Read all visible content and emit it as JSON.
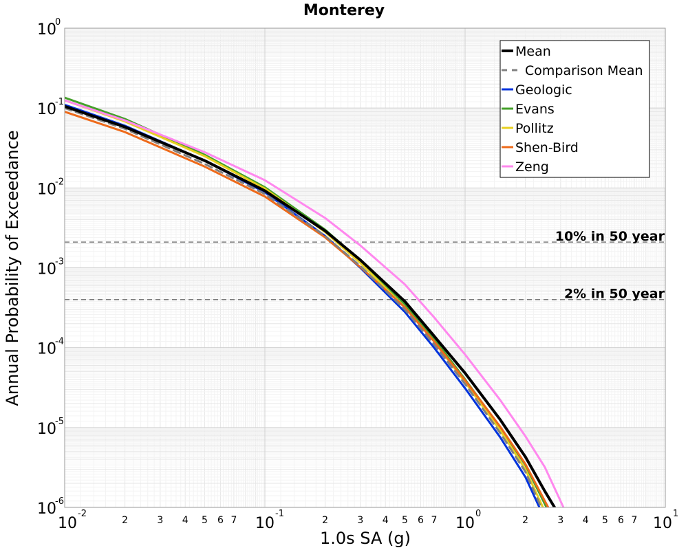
{
  "chart_data": {
    "type": "line",
    "title": "Monterey",
    "xlabel": "1.0s SA (g)",
    "ylabel": "Annual Probability of Exceedance",
    "x_scale": "log",
    "y_scale": "log",
    "xlim": [
      0.01,
      10
    ],
    "ylim": [
      1e-06,
      1
    ],
    "grid": true,
    "legend_position": "top-right",
    "x_ticks": {
      "major": [
        {
          "value": 0.01,
          "base": "10",
          "exp": "-2"
        },
        {
          "value": 0.1,
          "base": "10",
          "exp": "-1"
        },
        {
          "value": 1,
          "base": "10",
          "exp": "0"
        },
        {
          "value": 10,
          "base": "10",
          "exp": "1"
        }
      ],
      "minor_labels": [
        "2",
        "3",
        "4",
        "5",
        "6",
        "7"
      ]
    },
    "y_ticks": {
      "major": [
        {
          "value": 1,
          "base": "10",
          "exp": "0"
        },
        {
          "value": 0.1,
          "base": "10",
          "exp": "-1"
        },
        {
          "value": 0.01,
          "base": "10",
          "exp": "-2"
        },
        {
          "value": 0.001,
          "base": "10",
          "exp": "-3"
        },
        {
          "value": 0.0001,
          "base": "10",
          "exp": "-4"
        },
        {
          "value": 1e-05,
          "base": "10",
          "exp": "-5"
        },
        {
          "value": 1e-06,
          "base": "10",
          "exp": "-6"
        }
      ]
    },
    "reference_lines": [
      {
        "label": "10% in 50 year",
        "y": 0.0021
      },
      {
        "label": "2% in 50 year",
        "y": 0.0004
      }
    ],
    "series": [
      {
        "name": "Mean",
        "color": "#000000",
        "style": "solid",
        "width": 4,
        "x": [
          0.01,
          0.02,
          0.05,
          0.1,
          0.2,
          0.3,
          0.5,
          0.7,
          1,
          1.5,
          2,
          2.5,
          2.8
        ],
        "y": [
          0.105,
          0.058,
          0.022,
          0.0092,
          0.0029,
          0.00125,
          0.00038,
          0.00014,
          4.8e-05,
          1.25e-05,
          4.3e-06,
          1.6e-06,
          1e-06
        ]
      },
      {
        "name": "Comparison Mean",
        "color": "#808080",
        "style": "dashed",
        "width": 3,
        "x": [
          0.01,
          0.02,
          0.05,
          0.1,
          0.2,
          0.3,
          0.5,
          0.7,
          1,
          1.5,
          2,
          2.4
        ],
        "y": [
          0.1,
          0.055,
          0.02,
          0.0084,
          0.0025,
          0.00105,
          0.0003,
          0.00011,
          3.5e-05,
          8.5e-06,
          2.8e-06,
          1e-06
        ]
      },
      {
        "name": "Geologic",
        "color": "#0033dd",
        "style": "solid",
        "width": 3,
        "x": [
          0.01,
          0.02,
          0.05,
          0.1,
          0.2,
          0.3,
          0.5,
          0.7,
          1,
          1.5,
          2,
          2.35
        ],
        "y": [
          0.11,
          0.06,
          0.022,
          0.0088,
          0.0025,
          0.001,
          0.00028,
          0.0001,
          3.1e-05,
          7.5e-06,
          2.4e-06,
          1e-06
        ]
      },
      {
        "name": "Evans",
        "color": "#44a02a",
        "style": "solid",
        "width": 3,
        "x": [
          0.01,
          0.02,
          0.05,
          0.1,
          0.2,
          0.3,
          0.5,
          0.7,
          1,
          1.5,
          2,
          2.55
        ],
        "y": [
          0.135,
          0.073,
          0.026,
          0.0102,
          0.003,
          0.00123,
          0.00035,
          0.00013,
          4e-05,
          1e-05,
          3.4e-06,
          1e-06
        ]
      },
      {
        "name": "Pollitz",
        "color": "#e8d020",
        "style": "solid",
        "width": 3,
        "x": [
          0.01,
          0.02,
          0.05,
          0.1,
          0.2,
          0.3,
          0.5,
          0.7,
          1,
          1.5,
          2,
          2.45
        ],
        "y": [
          0.125,
          0.068,
          0.025,
          0.0098,
          0.0028,
          0.00115,
          0.00032,
          0.00012,
          3.7e-05,
          9.2e-06,
          3e-06,
          1e-06
        ]
      },
      {
        "name": "Shen-Bird",
        "color": "#ee6a1a",
        "style": "solid",
        "width": 3,
        "x": [
          0.01,
          0.02,
          0.05,
          0.1,
          0.2,
          0.3,
          0.5,
          0.7,
          1,
          1.5,
          2,
          2.6
        ],
        "y": [
          0.09,
          0.05,
          0.0185,
          0.0078,
          0.0024,
          0.00102,
          0.00032,
          0.00012,
          3.9e-05,
          1.02e-05,
          3.5e-06,
          1e-06
        ]
      },
      {
        "name": "Zeng",
        "color": "#ff88ee",
        "style": "solid",
        "width": 3,
        "x": [
          0.01,
          0.02,
          0.05,
          0.1,
          0.2,
          0.3,
          0.5,
          0.7,
          1,
          1.5,
          2,
          2.5,
          3.1
        ],
        "y": [
          0.125,
          0.07,
          0.028,
          0.0125,
          0.0042,
          0.0019,
          0.00062,
          0.00024,
          8.2e-05,
          2.2e-05,
          7.8e-06,
          3.2e-06,
          1e-06
        ]
      }
    ]
  }
}
